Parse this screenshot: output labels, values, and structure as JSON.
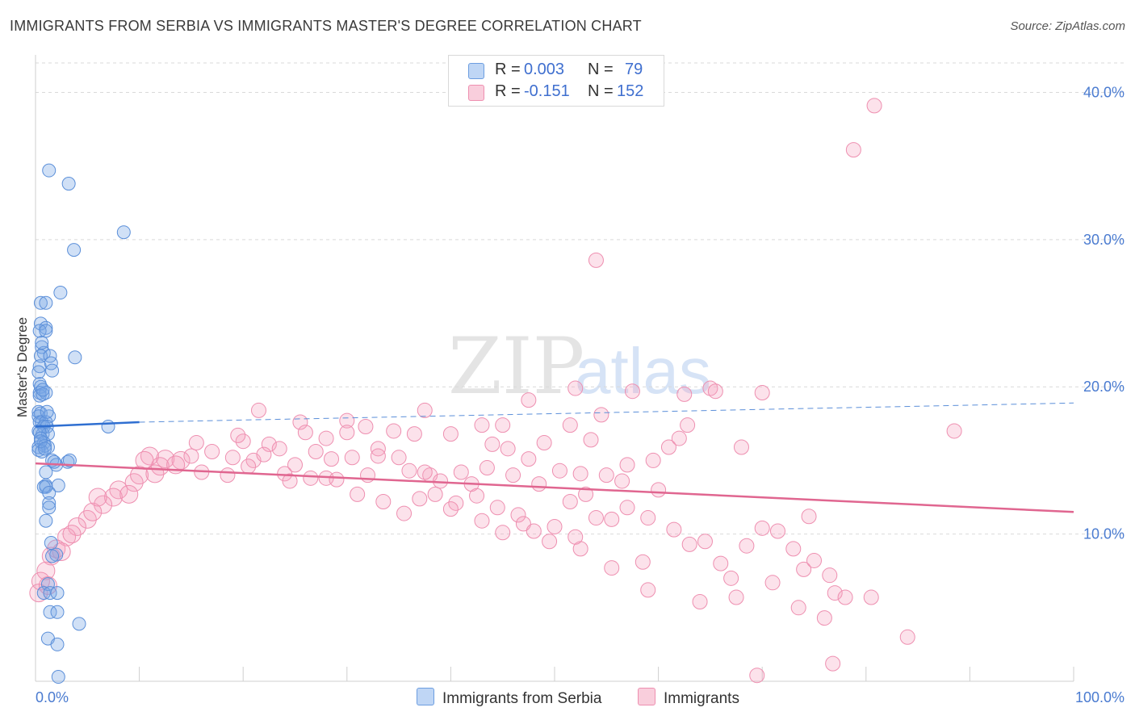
{
  "title": "IMMIGRANTS FROM SERBIA VS IMMIGRANTS MASTER'S DEGREE CORRELATION CHART",
  "source": "Source: ZipAtlas.com",
  "watermark": {
    "part1": "ZIP",
    "part2": "atlas"
  },
  "legend": [
    {
      "r_label": "R =",
      "r_value": "0.003",
      "n_label": "N =",
      "n_value": "79",
      "color": "#8ab4ec"
    },
    {
      "r_label": "R =",
      "r_value": "-0.151",
      "n_label": "N =",
      "n_value": "152",
      "color": "#f4a6c0"
    }
  ],
  "bottom_legend": [
    {
      "label": "Immigrants from Serbia",
      "color": "#8ab4ec"
    },
    {
      "label": "Immigrants",
      "color": "#f4a6c0"
    }
  ],
  "colors": {
    "blue_fill": "rgba(120,165,230,0.35)",
    "blue_stroke": "#5b8fd9",
    "blue_line": "#2f6fd1",
    "pink_fill": "rgba(244,160,190,0.30)",
    "pink_stroke": "#ee8fb0",
    "pink_line": "#e06690",
    "grid": "#d9d9d9"
  },
  "chart_data": {
    "type": "scatter",
    "title": "IMMIGRANTS FROM SERBIA VS IMMIGRANTS MASTER'S DEGREE CORRELATION CHART",
    "xlabel": "",
    "ylabel": "Master's Degree",
    "xlim": [
      0,
      100
    ],
    "ylim": [
      0,
      42
    ],
    "x_tick_labels": [
      {
        "value": 0,
        "label": "0.0%"
      },
      {
        "value": 100,
        "label": "100.0%"
      }
    ],
    "y_ticks": [
      {
        "value": 10,
        "label": "10.0%"
      },
      {
        "value": 20,
        "label": "20.0%"
      },
      {
        "value": 30,
        "label": "30.0%"
      },
      {
        "value": 40,
        "label": "40.0%"
      }
    ],
    "series": [
      {
        "name": "Immigrants from Serbia",
        "trend": {
          "solid": [
            [
              0,
              17.3
            ],
            [
              10,
              17.6
            ]
          ],
          "dashed": [
            [
              10,
              17.6
            ],
            [
              100,
              18.9
            ]
          ]
        },
        "points": [
          [
            1.3,
            34.7
          ],
          [
            3.2,
            33.8
          ],
          [
            8.5,
            30.5
          ],
          [
            3.7,
            29.3
          ],
          [
            2.4,
            26.4
          ],
          [
            0.5,
            25.7
          ],
          [
            1.0,
            25.7
          ],
          [
            0.5,
            24.3
          ],
          [
            1.0,
            24.0
          ],
          [
            0.4,
            23.8
          ],
          [
            1.0,
            23.8
          ],
          [
            0.6,
            22.7
          ],
          [
            0.8,
            22.3
          ],
          [
            0.5,
            22.1
          ],
          [
            1.4,
            22.1
          ],
          [
            3.8,
            22.0
          ],
          [
            0.4,
            21.4
          ],
          [
            1.5,
            21.6
          ],
          [
            1.6,
            21.1
          ],
          [
            0.3,
            21.0
          ],
          [
            0.4,
            20.2
          ],
          [
            0.5,
            20.0
          ],
          [
            0.4,
            19.6
          ],
          [
            0.4,
            19.4
          ],
          [
            1.0,
            19.6
          ],
          [
            0.7,
            19.5
          ],
          [
            0.3,
            18.3
          ],
          [
            0.5,
            18.2
          ],
          [
            0.3,
            18.0
          ],
          [
            1.3,
            18.0
          ],
          [
            0.4,
            17.6
          ],
          [
            0.6,
            17.6
          ],
          [
            1.0,
            17.6
          ],
          [
            0.8,
            17.3
          ],
          [
            1.1,
            17.3
          ],
          [
            0.3,
            17.0
          ],
          [
            0.7,
            16.8
          ],
          [
            1.2,
            16.8
          ],
          [
            0.4,
            16.9
          ],
          [
            0.5,
            16.5
          ],
          [
            0.8,
            16.2
          ],
          [
            0.3,
            15.9
          ],
          [
            0.9,
            16.0
          ],
          [
            1.2,
            15.9
          ],
          [
            0.3,
            15.7
          ],
          [
            0.6,
            15.6
          ],
          [
            1.6,
            15.0
          ],
          [
            3.1,
            14.9
          ],
          [
            3.3,
            15.0
          ],
          [
            2.0,
            14.7
          ],
          [
            7.0,
            17.3
          ],
          [
            1.0,
            14.2
          ],
          [
            1.0,
            13.3
          ],
          [
            1.0,
            13.2
          ],
          [
            0.8,
            13.2
          ],
          [
            2.2,
            13.3
          ],
          [
            1.3,
            12.8
          ],
          [
            1.3,
            12.1
          ],
          [
            1.3,
            11.8
          ],
          [
            1.0,
            10.9
          ],
          [
            1.5,
            9.4
          ],
          [
            2.0,
            8.6
          ],
          [
            1.6,
            8.5
          ],
          [
            1.2,
            6.6
          ],
          [
            0.8,
            6.0
          ],
          [
            1.4,
            6.0
          ],
          [
            2.1,
            6.0
          ],
          [
            1.4,
            4.7
          ],
          [
            2.1,
            4.7
          ],
          [
            4.2,
            3.9
          ],
          [
            1.2,
            2.9
          ],
          [
            2.1,
            2.5
          ],
          [
            2.2,
            0.3
          ],
          [
            0.5,
            16.3
          ],
          [
            0.7,
            19.8
          ],
          [
            0.9,
            15.8
          ],
          [
            1.8,
            14.9
          ],
          [
            0.6,
            23.0
          ],
          [
            1.1,
            18.3
          ]
        ]
      },
      {
        "name": "Immigrants",
        "trend": {
          "solid": [
            [
              0,
              14.8
            ],
            [
              100,
              11.5
            ]
          ]
        },
        "points": [
          [
            80.8,
            39.1
          ],
          [
            78.8,
            36.1
          ],
          [
            54.0,
            28.6
          ],
          [
            52.0,
            19.9
          ],
          [
            57.5,
            19.7
          ],
          [
            62.5,
            19.5
          ],
          [
            65.0,
            19.9
          ],
          [
            70.0,
            19.6
          ],
          [
            47.5,
            19.1
          ],
          [
            54.5,
            18.1
          ],
          [
            37.5,
            18.4
          ],
          [
            21.5,
            18.4
          ],
          [
            25.5,
            17.6
          ],
          [
            30.0,
            17.7
          ],
          [
            31.8,
            17.3
          ],
          [
            51.5,
            17.4
          ],
          [
            43.0,
            17.4
          ],
          [
            45.0,
            17.4
          ],
          [
            62.8,
            17.4
          ],
          [
            20.0,
            16.3
          ],
          [
            22.5,
            16.1
          ],
          [
            26.0,
            16.9
          ],
          [
            28.0,
            16.5
          ],
          [
            30.0,
            16.9
          ],
          [
            34.5,
            17.0
          ],
          [
            36.5,
            16.8
          ],
          [
            40.0,
            16.8
          ],
          [
            44.0,
            16.1
          ],
          [
            53.5,
            16.4
          ],
          [
            61.0,
            15.9
          ],
          [
            68.0,
            15.9
          ],
          [
            88.5,
            17.0
          ],
          [
            11.0,
            15.3
          ],
          [
            12.5,
            15.1
          ],
          [
            14.0,
            15.0
          ],
          [
            17.0,
            15.6
          ],
          [
            19.0,
            15.2
          ],
          [
            21.0,
            15.0
          ],
          [
            23.5,
            15.8
          ],
          [
            25.0,
            14.7
          ],
          [
            27.0,
            15.6
          ],
          [
            30.5,
            15.2
          ],
          [
            33.0,
            15.8
          ],
          [
            35.0,
            15.2
          ],
          [
            36.0,
            14.3
          ],
          [
            38.0,
            14.0
          ],
          [
            41.0,
            14.2
          ],
          [
            43.5,
            14.5
          ],
          [
            45.5,
            15.8
          ],
          [
            47.5,
            15.1
          ],
          [
            49.0,
            16.2
          ],
          [
            55.0,
            14.0
          ],
          [
            57.0,
            14.7
          ],
          [
            59.5,
            15.0
          ],
          [
            12.0,
            14.6
          ],
          [
            13.5,
            14.7
          ],
          [
            16.0,
            14.2
          ],
          [
            18.5,
            14.0
          ],
          [
            20.5,
            14.6
          ],
          [
            24.0,
            14.1
          ],
          [
            28.0,
            13.8
          ],
          [
            32.0,
            14.0
          ],
          [
            39.0,
            13.6
          ],
          [
            42.0,
            13.4
          ],
          [
            46.0,
            14.0
          ],
          [
            48.5,
            13.4
          ],
          [
            50.5,
            14.3
          ],
          [
            52.5,
            14.1
          ],
          [
            56.5,
            13.6
          ],
          [
            60.0,
            13.0
          ],
          [
            8.0,
            13.0
          ],
          [
            9.5,
            13.5
          ],
          [
            10.0,
            14.0
          ],
          [
            7.5,
            12.5
          ],
          [
            6.5,
            12.0
          ],
          [
            5.0,
            11.0
          ],
          [
            4.0,
            10.5
          ],
          [
            3.0,
            9.8
          ],
          [
            2.0,
            9.0
          ],
          [
            1.5,
            8.5
          ],
          [
            1.0,
            7.5
          ],
          [
            0.5,
            6.8
          ],
          [
            0.3,
            6.0
          ],
          [
            1.2,
            6.5
          ],
          [
            2.5,
            8.8
          ],
          [
            3.5,
            10.0
          ],
          [
            5.5,
            11.5
          ],
          [
            6.0,
            12.5
          ],
          [
            15.0,
            15.3
          ],
          [
            10.5,
            15.0
          ],
          [
            22.0,
            15.4
          ],
          [
            24.5,
            13.6
          ],
          [
            26.5,
            13.8
          ],
          [
            29.0,
            13.7
          ],
          [
            31.0,
            12.7
          ],
          [
            33.5,
            12.2
          ],
          [
            35.5,
            11.4
          ],
          [
            37.0,
            12.4
          ],
          [
            38.5,
            12.7
          ],
          [
            40.5,
            12.1
          ],
          [
            42.5,
            12.6
          ],
          [
            44.5,
            11.8
          ],
          [
            46.5,
            11.3
          ],
          [
            47.0,
            10.7
          ],
          [
            48.0,
            10.2
          ],
          [
            50.0,
            10.5
          ],
          [
            51.5,
            12.2
          ],
          [
            53.0,
            12.7
          ],
          [
            54.0,
            11.1
          ],
          [
            55.5,
            11.0
          ],
          [
            57.0,
            11.8
          ],
          [
            59.0,
            11.1
          ],
          [
            61.5,
            10.3
          ],
          [
            63.0,
            9.3
          ],
          [
            64.5,
            9.5
          ],
          [
            66.0,
            8.0
          ],
          [
            67.0,
            7.0
          ],
          [
            68.5,
            9.2
          ],
          [
            70.0,
            10.4
          ],
          [
            71.5,
            10.2
          ],
          [
            73.0,
            9.0
          ],
          [
            74.0,
            7.6
          ],
          [
            75.0,
            8.2
          ],
          [
            76.5,
            7.2
          ],
          [
            77.0,
            6.0
          ],
          [
            78.0,
            5.7
          ],
          [
            74.5,
            11.2
          ],
          [
            80.5,
            5.7
          ],
          [
            84.0,
            3.0
          ],
          [
            76.0,
            4.3
          ],
          [
            76.8,
            1.2
          ],
          [
            69.5,
            0.4
          ],
          [
            52.5,
            9.0
          ],
          [
            55.5,
            7.7
          ],
          [
            59.0,
            6.2
          ],
          [
            64.0,
            5.4
          ],
          [
            67.5,
            5.7
          ],
          [
            71.0,
            6.7
          ],
          [
            73.5,
            5.0
          ],
          [
            58.5,
            8.1
          ],
          [
            52.0,
            9.8
          ],
          [
            49.5,
            9.5
          ],
          [
            45.0,
            10.1
          ],
          [
            43.0,
            10.9
          ],
          [
            40.0,
            11.7
          ],
          [
            37.5,
            14.2
          ],
          [
            33.0,
            15.3
          ],
          [
            28.5,
            15.1
          ],
          [
            19.5,
            16.7
          ],
          [
            15.5,
            16.2
          ],
          [
            11.5,
            14.1
          ],
          [
            9.0,
            12.7
          ],
          [
            62.0,
            16.5
          ],
          [
            65.5,
            19.7
          ]
        ]
      }
    ]
  }
}
